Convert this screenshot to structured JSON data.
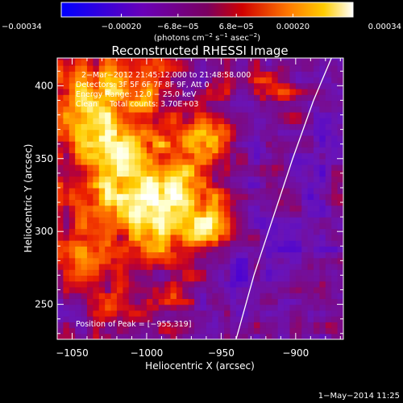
{
  "chart_data": {
    "type": "heatmap",
    "title": "Reconstructed RHESSI Image",
    "xlabel": "Heliocentric X (arcsec)",
    "ylabel": "Heliocentric Y (arcsec)",
    "xlim": [
      -1060,
      -868
    ],
    "ylim": [
      226,
      419
    ],
    "xticks": [
      -1050,
      -1000,
      -950,
      -900
    ],
    "xtick_labels": [
      "−1050",
      "−1000",
      "−950",
      "−900"
    ],
    "yticks": [
      250,
      300,
      350,
      400
    ],
    "ytick_labels": [
      "250",
      "300",
      "350",
      "400"
    ],
    "colorbar": {
      "range": [
        -0.00034,
        0.00034
      ],
      "ticks": [
        -0.00034,
        -0.0002,
        -6.8e-05,
        6.8e-05,
        0.0002,
        0.00034
      ],
      "tick_labels": [
        "−0.00034",
        "−0.00020",
        "−6.8e−05",
        "6.8e−05",
        "0.00020",
        "0.00034"
      ],
      "units_text": "(photons cm",
      "units_exp1": "−2",
      "units_mid": " s",
      "units_exp2": "−1",
      "units_end": " asec",
      "units_exp3": "−2",
      "units_close": ")"
    },
    "annotations": [
      "2−Mar−2012 21:45:12.000 to 21:48:58.000",
      "Detectors: 3F 5F 6F 7F 8F 9F, Att 0",
      "Energy Range: 12.0 − 25.0 keV",
      "Clean     Total counts: 3.70E+03"
    ],
    "peak_label": "Position of Peak = [−955,319]",
    "peak": [
      -955,
      319
    ],
    "limb_points": [
      [
        -940,
        226
      ],
      [
        -928,
        270
      ],
      [
        -915,
        310
      ],
      [
        -902,
        350
      ],
      [
        -888,
        390
      ],
      [
        -876,
        419
      ]
    ],
    "sources": [
      {
        "x": -985,
        "y": 318,
        "amp": 1.0,
        "s": 22
      },
      {
        "x": -1025,
        "y": 365,
        "amp": 0.75,
        "s": 25
      },
      {
        "x": -1045,
        "y": 405,
        "amp": 0.5,
        "s": 18
      },
      {
        "x": -1035,
        "y": 315,
        "amp": 0.45,
        "s": 18
      },
      {
        "x": -1045,
        "y": 285,
        "amp": 0.3,
        "s": 14
      },
      {
        "x": -1000,
        "y": 410,
        "amp": 0.45,
        "s": 14
      },
      {
        "x": -960,
        "y": 365,
        "amp": 0.45,
        "s": 14
      },
      {
        "x": -915,
        "y": 395,
        "amp": 0.5,
        "s": 12
      },
      {
        "x": -960,
        "y": 300,
        "amp": 0.35,
        "s": 10
      },
      {
        "x": -1025,
        "y": 255,
        "amp": 0.28,
        "s": 12
      },
      {
        "x": -990,
        "y": 255,
        "amp": 0.2,
        "s": 10
      },
      {
        "x": -940,
        "y": 270,
        "amp": -0.35,
        "s": 8
      },
      {
        "x": -893,
        "y": 295,
        "amp": -0.2,
        "s": 10
      }
    ],
    "footer_date": "1−May−2014 11:25"
  }
}
